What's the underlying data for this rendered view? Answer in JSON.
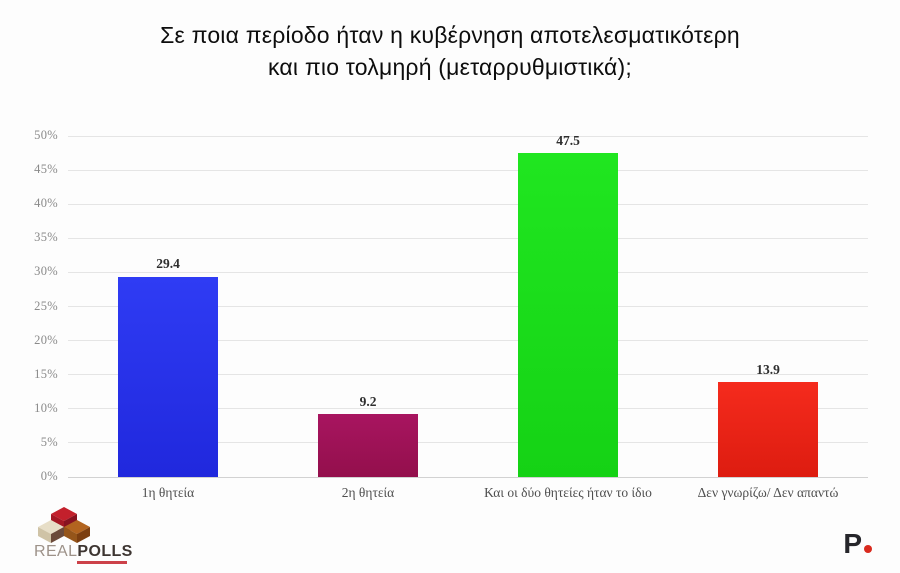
{
  "title_lines": [
    "Σε ποια περίοδο ήταν η κυβέρνηση αποτελεσματικότερη",
    "και πιο τολμηρή (μεταρρυθμιστικά);"
  ],
  "chart_data": {
    "type": "bar",
    "title": "Σε ποια περίοδο ήταν η κυβέρνηση αποτελεσματικότερη και πιο τολμηρή (μεταρρυθμιστικά);",
    "categories": [
      "1η θητεία",
      "2η θητεία",
      "Και οι δύο θητείες ήταν το ίδιο",
      "Δεν γνωρίζω/ Δεν απαντώ"
    ],
    "values": [
      29.4,
      9.2,
      47.5,
      13.9
    ],
    "value_labels": [
      "29.4",
      "9.2",
      "47.5",
      "13.9"
    ],
    "bar_colors_top": [
      "#2f3cf4",
      "#a81560",
      "#20e620",
      "#f52b1d"
    ],
    "bar_colors_bottom": [
      "#2028dd",
      "#930f4c",
      "#15d215",
      "#dd1c10"
    ],
    "xlabel": "",
    "ylabel": "",
    "ylim": [
      0,
      50
    ],
    "yticks": [
      0,
      5,
      10,
      15,
      20,
      25,
      30,
      35,
      40,
      45,
      50
    ],
    "ytick_labels": [
      "0%",
      "5%",
      "10%",
      "15%",
      "20%",
      "25%",
      "30%",
      "35%",
      "40%",
      "45%",
      "50%"
    ],
    "grid": "horizontal",
    "legend": "none"
  },
  "logos": {
    "realpolls": {
      "word1": "REAL",
      "word2": "POLLS"
    },
    "protagon": {
      "letter": "P"
    }
  },
  "colors": {
    "grid": "#e5e5e5",
    "baseline": "#d2d2d2",
    "axis_text": "#8a8a8a",
    "category_text": "#4e4e4e",
    "value_text": "#2e2e2e",
    "logo_red": "#c32029",
    "protagon_dot_red": "#d92a1e"
  }
}
